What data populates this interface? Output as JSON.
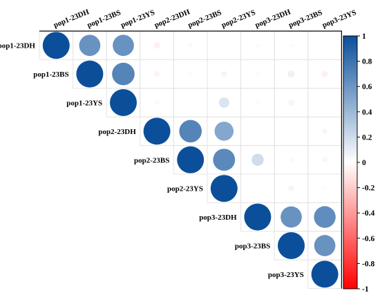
{
  "chart_data": {
    "type": "heatmap",
    "style": "upper-triangle correlation plot, circles sized and colored by correlation",
    "variables": [
      "pop1-23DH",
      "pop1-23BS",
      "pop1-23YS",
      "pop2-23DH",
      "pop2-23BS",
      "pop2-23YS",
      "pop3-23DH",
      "pop3-23BS",
      "pop3-23YS"
    ],
    "matrix": [
      [
        1.0,
        0.62,
        0.62,
        -0.06,
        -0.03,
        0.0,
        0.02,
        0.02,
        0.0
      ],
      [
        0.62,
        1.0,
        0.7,
        -0.05,
        0.02,
        0.05,
        0.02,
        0.07,
        -0.06
      ],
      [
        0.62,
        0.7,
        1.0,
        0.03,
        0.0,
        0.15,
        0.03,
        0.05,
        0.0
      ],
      [
        -0.06,
        -0.05,
        0.03,
        1.0,
        0.7,
        0.5,
        0.0,
        0.0,
        0.04
      ],
      [
        -0.03,
        0.02,
        0.0,
        0.7,
        1.0,
        0.67,
        0.2,
        0.03,
        0.04
      ],
      [
        0.0,
        0.05,
        0.15,
        0.5,
        0.67,
        1.0,
        0.0,
        0.05,
        0.02
      ],
      [
        0.02,
        0.02,
        0.03,
        0.0,
        0.2,
        0.0,
        1.0,
        0.62,
        0.65
      ],
      [
        0.02,
        0.07,
        0.05,
        0.0,
        0.03,
        0.05,
        0.62,
        1.0,
        0.62
      ],
      [
        0.0,
        -0.06,
        0.0,
        0.04,
        0.04,
        0.02,
        0.65,
        0.62,
        1.0
      ]
    ],
    "colorbar": {
      "range": [
        -1,
        1
      ],
      "ticks": [
        "1",
        "0.8",
        "0.6",
        "0.4",
        "0.2",
        "0",
        "-0.2",
        "-0.4",
        "-0.6",
        "-0.8",
        "-1"
      ],
      "colors": {
        "positive": "#0b4f9a",
        "zero": "#ffffff",
        "negative": "#ff0000"
      }
    },
    "legend_position": "right",
    "grid": true
  }
}
